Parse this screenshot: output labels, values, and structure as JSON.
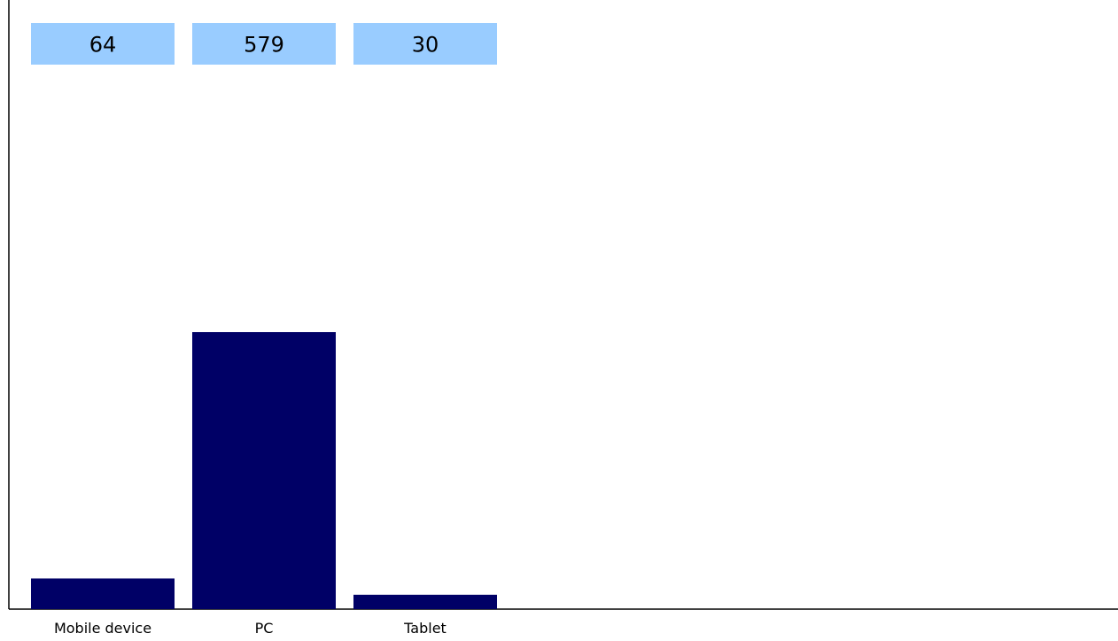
{
  "chart_data": {
    "type": "bar",
    "categories": [
      "Mobile device",
      "PC",
      "Tablet"
    ],
    "values": [
      64,
      579,
      30
    ],
    "ylim": [
      0,
      1273
    ],
    "grid": false,
    "legend": "none",
    "colors": {
      "bar": "#000066",
      "value_box": "#99ccff",
      "axis": "#000000"
    }
  }
}
